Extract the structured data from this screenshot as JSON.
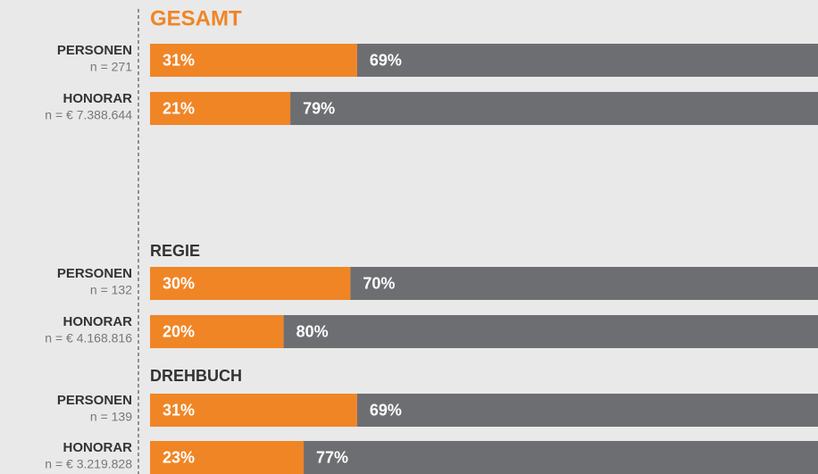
{
  "chart_data": {
    "type": "bar",
    "orientation": "horizontal",
    "stacked": true,
    "colors": [
      "#f08526",
      "#6d6e71"
    ],
    "groups": [
      {
        "title": "GESAMT",
        "title_color": "#f08526",
        "rows": [
          {
            "label": "PERSONEN",
            "n": "n = 271",
            "values": [
              31,
              69
            ],
            "value_labels": [
              "31%",
              "69%"
            ]
          },
          {
            "label": "HONORAR",
            "n": "n = € 7.388.644",
            "values": [
              21,
              79
            ],
            "value_labels": [
              "21%",
              "79%"
            ]
          }
        ]
      },
      {
        "title": "REGIE",
        "title_color": "#333333",
        "rows": [
          {
            "label": "PERSONEN",
            "n": "n = 132",
            "values": [
              30,
              70
            ],
            "value_labels": [
              "30%",
              "70%"
            ]
          },
          {
            "label": "HONORAR",
            "n": "n = € 4.168.816",
            "values": [
              20,
              80
            ],
            "value_labels": [
              "20%",
              "80%"
            ]
          }
        ]
      },
      {
        "title": "DREHBUCH",
        "title_color": "#333333",
        "rows": [
          {
            "label": "PERSONEN",
            "n": "n = 139",
            "values": [
              31,
              69
            ],
            "value_labels": [
              "31%",
              "69%"
            ]
          },
          {
            "label": "HONORAR",
            "n": "n = € 3.219.828",
            "values": [
              23,
              77
            ],
            "value_labels": [
              "23%",
              "77%"
            ]
          }
        ]
      }
    ]
  }
}
